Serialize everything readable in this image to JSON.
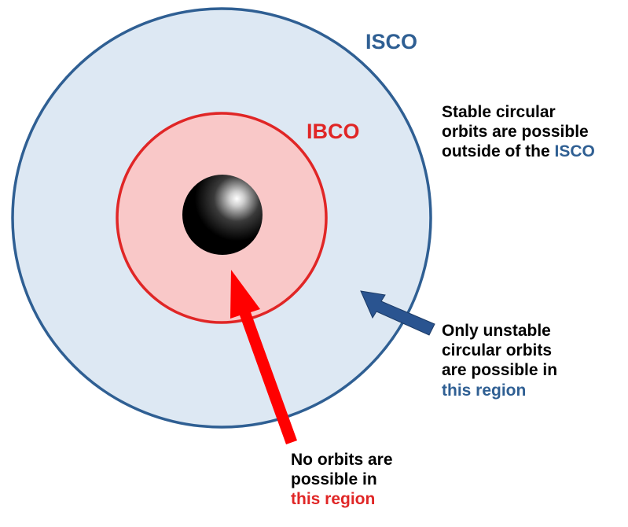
{
  "colors": {
    "isco": "#2f5f93",
    "isco_fill": "#dde8f3",
    "ibco": "#e02626",
    "ibco_fill": "#f9c8c8",
    "black_hole": "#000000",
    "blue_arrow": "#2a5490",
    "red_arrow": "#ff0000",
    "text": "#000000"
  },
  "labels": {
    "isco": "ISCO",
    "ibco": "IBCO"
  },
  "stable_note": {
    "line1": "Stable circular",
    "line2": "orbits are possible",
    "line3_prefix": "outside of the ",
    "line3_highlight": "ISCO"
  },
  "unstable_note": {
    "line1": "Only unstable",
    "line2": "circular orbits",
    "line3": "are possible in",
    "line4": "this region"
  },
  "forbidden_note": {
    "line1": "No orbits are",
    "line2": "possible in",
    "line3": "this region"
  }
}
